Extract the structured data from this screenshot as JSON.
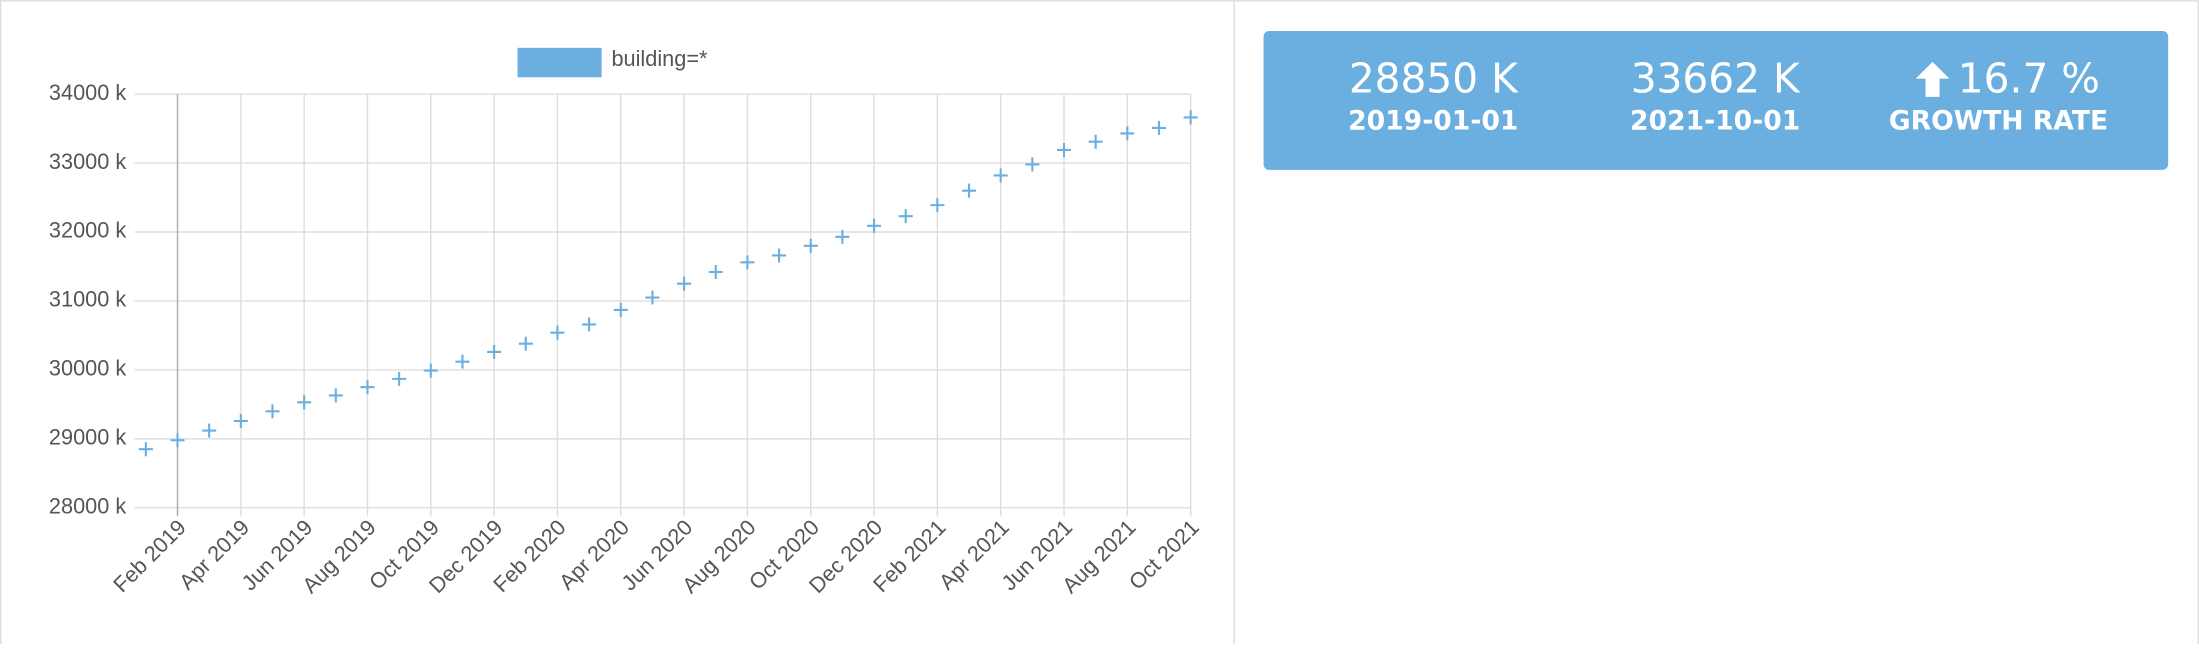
{
  "chart_data": {
    "type": "scatter",
    "series": [
      {
        "name": "building=*",
        "color": "#6aafe0",
        "x": [
          "2019-01",
          "2019-02",
          "2019-03",
          "2019-04",
          "2019-05",
          "2019-06",
          "2019-07",
          "2019-08",
          "2019-09",
          "2019-10",
          "2019-11",
          "2019-12",
          "2020-01",
          "2020-02",
          "2020-03",
          "2020-04",
          "2020-05",
          "2020-06",
          "2020-07",
          "2020-08",
          "2020-09",
          "2020-10",
          "2020-11",
          "2020-12",
          "2021-01",
          "2021-02",
          "2021-03",
          "2021-04",
          "2021-05",
          "2021-06",
          "2021-07",
          "2021-08",
          "2021-09",
          "2021-10"
        ],
        "values": [
          28850,
          28980,
          29120,
          29260,
          29400,
          29530,
          29630,
          29750,
          29870,
          29990,
          30120,
          30260,
          30380,
          30540,
          30660,
          30870,
          31050,
          31250,
          31420,
          31560,
          31660,
          31800,
          31930,
          32090,
          32230,
          32390,
          32600,
          32820,
          32980,
          33190,
          33310,
          33430,
          33510,
          33662
        ]
      }
    ],
    "xlim": [
      "2019-01",
      "2021-10"
    ],
    "xticks": [
      {
        "value": "2019-02",
        "label": "Feb 2019"
      },
      {
        "value": "2019-04",
        "label": "Apr 2019"
      },
      {
        "value": "2019-06",
        "label": "Jun 2019"
      },
      {
        "value": "2019-08",
        "label": "Aug 2019"
      },
      {
        "value": "2019-10",
        "label": "Oct 2019"
      },
      {
        "value": "2019-12",
        "label": "Dec 2019"
      },
      {
        "value": "2020-02",
        "label": "Feb 2020"
      },
      {
        "value": "2020-04",
        "label": "Apr 2020"
      },
      {
        "value": "2020-06",
        "label": "Jun 2020"
      },
      {
        "value": "2020-08",
        "label": "Aug 2020"
      },
      {
        "value": "2020-10",
        "label": "Oct 2020"
      },
      {
        "value": "2020-12",
        "label": "Dec 2020"
      },
      {
        "value": "2021-02",
        "label": "Feb 2021"
      },
      {
        "value": "2021-04",
        "label": "Apr 2021"
      },
      {
        "value": "2021-06",
        "label": "Jun 2021"
      },
      {
        "value": "2021-08",
        "label": "Aug 2021"
      },
      {
        "value": "2021-10",
        "label": "Oct 2021"
      }
    ],
    "ylim": [
      28000,
      34000
    ],
    "yticks": [
      {
        "value": 28000,
        "label": "28000 k"
      },
      {
        "value": 29000,
        "label": "29000 k"
      },
      {
        "value": 30000,
        "label": "30000 k"
      },
      {
        "value": 31000,
        "label": "31000 k"
      },
      {
        "value": 32000,
        "label": "32000 k"
      },
      {
        "value": 33000,
        "label": "33000 k"
      },
      {
        "value": 34000,
        "label": "34000 k"
      }
    ],
    "grid": true
  },
  "stats": [
    {
      "value": "28850 K",
      "label": "2019-01-01"
    },
    {
      "value": "33662 K",
      "label": "2021-10-01"
    },
    {
      "value": "16.7 %",
      "label": "GROWTH RATE"
    }
  ]
}
